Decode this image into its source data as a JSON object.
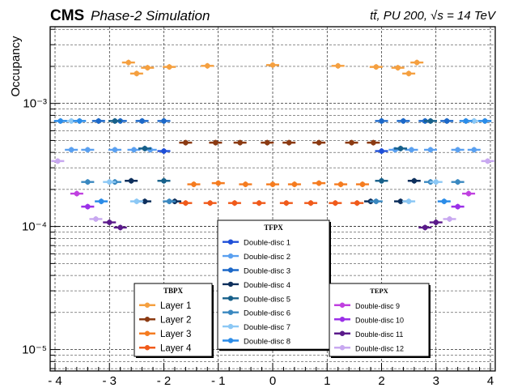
{
  "chart_data": {
    "type": "scatter",
    "title_left_bold": "CMS",
    "title_left_italic": "Phase-2 Simulation",
    "title_right": "tt̄, PU 200, √s = 14 TeV",
    "ylabel": "Occupancy",
    "xlabel": "",
    "ylim": [
      6.7e-06,
      0.0042
    ],
    "xlim": [
      -4.0,
      4.0
    ],
    "log_y": true,
    "grid": true,
    "x_ticks": [
      -4,
      -3,
      -2,
      -1,
      0,
      1,
      2,
      3,
      4
    ],
    "x_tick_labels": [
      "- 4",
      "- 3",
      "- 2",
      "- 1",
      "0",
      "1",
      "2",
      "3",
      "4"
    ],
    "y_ticks": [
      1e-05,
      0.0001,
      0.001
    ],
    "y_tick_labels": [
      "10⁻⁵",
      "10⁻⁴",
      "10⁻³"
    ],
    "legends": [
      {
        "title": "TBPX",
        "position": "bottom-left",
        "entries": [
          {
            "label": "Layer 1",
            "color": "#f5a040"
          },
          {
            "label": "Layer 2",
            "color": "#8b3a12"
          },
          {
            "label": "Layer 3",
            "color": "#f57c20"
          },
          {
            "label": "Layer 4",
            "color": "#f05a1a"
          }
        ]
      },
      {
        "title": "TFPX",
        "position": "bottom-center",
        "entries": [
          {
            "label": "Double-disc 1",
            "color": "#1f4fd8"
          },
          {
            "label": "Double-disc 2",
            "color": "#5aa0f0"
          },
          {
            "label": "Double-disc 3",
            "color": "#1c68c8"
          },
          {
            "label": "Double-disc 4",
            "color": "#0d2f5c"
          },
          {
            "label": "Double-disc 5",
            "color": "#17608a"
          },
          {
            "label": "Double-disc 6",
            "color": "#3a88c0"
          },
          {
            "label": "Double-disc 7",
            "color": "#8cc8f5"
          },
          {
            "label": "Double-disc 8",
            "color": "#2b8ce8"
          }
        ]
      },
      {
        "title": "TEPX",
        "position": "bottom-right",
        "entries": [
          {
            "label": "Double-disc 9",
            "color": "#c040e0"
          },
          {
            "label": "Double-disc 10",
            "color": "#9b30e8"
          },
          {
            "label": "Double-disc 11",
            "color": "#5a1a8a"
          },
          {
            "label": "Double-disc 12",
            "color": "#c8a8f0"
          }
        ]
      }
    ],
    "series": [
      {
        "name": "Layer 1",
        "color": "#f5a040",
        "x": [
          -2.65,
          -2.5,
          -2.3,
          -1.9,
          -1.2,
          0.0,
          1.2,
          1.9,
          2.3,
          2.5,
          2.65
        ],
        "y": [
          0.00215,
          0.00175,
          0.00195,
          0.00198,
          0.00202,
          0.00205,
          0.00202,
          0.00198,
          0.00195,
          0.00175,
          0.00215
        ]
      },
      {
        "name": "Layer 2",
        "color": "#8b3a12",
        "x": [
          -1.6,
          -1.05,
          -0.6,
          -0.1,
          0.3,
          0.85,
          1.45,
          1.85
        ],
        "y": [
          0.00048,
          0.00048,
          0.00048,
          0.00048,
          0.00048,
          0.00048,
          0.00048,
          0.00048
        ]
      },
      {
        "name": "Layer 3",
        "color": "#f57c20",
        "x": [
          -1.45,
          -1.0,
          -0.5,
          0.0,
          0.4,
          0.85,
          1.25,
          1.65
        ],
        "y": [
          0.00022,
          0.000225,
          0.00022,
          0.00022,
          0.00022,
          0.000225,
          0.00022,
          0.00022
        ]
      },
      {
        "name": "Layer 4",
        "color": "#f05a1a",
        "x": [
          -1.6,
          -1.15,
          -0.7,
          -0.25,
          0.25,
          0.7,
          1.15,
          1.55
        ],
        "y": [
          0.000155,
          0.000155,
          0.000155,
          0.000155,
          0.000155,
          0.000155,
          0.000155,
          0.000155
        ]
      },
      {
        "name": "Double-disc 1",
        "color": "#1f4fd8",
        "x": [
          -2.0,
          2.0
        ],
        "y": [
          0.00041,
          0.00041
        ]
      },
      {
        "name": "Double-disc 2",
        "color": "#5aa0f0",
        "x": [
          -3.7,
          -3.4,
          -2.9,
          -2.55,
          -2.25,
          2.25,
          2.55,
          2.9,
          3.4,
          3.7
        ],
        "y": [
          0.00042,
          0.00042,
          0.00042,
          0.00042,
          0.00042,
          0.00042,
          0.00042,
          0.00042,
          0.00042,
          0.00042
        ]
      },
      {
        "name": "Double-disc 3",
        "color": "#1c68c8",
        "x": [
          -3.2,
          -2.8,
          -2.4,
          -2.0,
          2.0,
          2.4,
          2.8,
          3.2
        ],
        "y": [
          0.00072,
          0.00072,
          0.00072,
          0.00072,
          0.00072,
          0.00072,
          0.00072,
          0.00072
        ]
      },
      {
        "name": "Double-disc 4",
        "color": "#0d2f5c",
        "x": [
          -2.6,
          -2.35,
          -1.8,
          1.8,
          2.35,
          2.6
        ],
        "y": [
          0.000235,
          0.00016,
          0.00016,
          0.00016,
          0.00016,
          0.000235
        ]
      },
      {
        "name": "Double-disc 5",
        "color": "#17608a",
        "x": [
          -2.9,
          -2.35,
          -2.0,
          2.0,
          2.35,
          2.9
        ],
        "y": [
          0.00072,
          0.00043,
          0.000235,
          0.000235,
          0.00043,
          0.00072
        ]
      },
      {
        "name": "Double-disc 6",
        "color": "#3a88c0",
        "x": [
          -3.4,
          -2.9,
          -1.9,
          1.9,
          2.9,
          3.4
        ],
        "y": [
          0.00023,
          0.00023,
          0.00016,
          0.00016,
          0.00023,
          0.00023
        ]
      },
      {
        "name": "Double-disc 7",
        "color": "#8cc8f5",
        "x": [
          -3.7,
          -3.0,
          -2.5,
          2.5,
          3.0,
          3.7
        ],
        "y": [
          0.00072,
          0.00023,
          0.00016,
          0.00016,
          0.00023,
          0.00072
        ]
      },
      {
        "name": "Double-disc 8",
        "color": "#2b8ce8",
        "x": [
          -3.9,
          -3.55,
          -3.15,
          3.15,
          3.55,
          3.9
        ],
        "y": [
          0.00072,
          0.00072,
          0.00016,
          0.00016,
          0.00072,
          0.00072
        ]
      },
      {
        "name": "Double-disc 9",
        "color": "#c040e0",
        "x": [
          -3.6,
          3.6
        ],
        "y": [
          0.000185,
          0.000185
        ]
      },
      {
        "name": "Double-disc 10",
        "color": "#9b30e8",
        "x": [
          -3.4,
          3.4
        ],
        "y": [
          0.000145,
          0.000145
        ]
      },
      {
        "name": "Double-disc 11",
        "color": "#5a1a8a",
        "x": [
          -3.0,
          -2.8,
          2.8,
          3.0
        ],
        "y": [
          0.000108,
          9.8e-05,
          9.8e-05,
          0.000108
        ]
      },
      {
        "name": "Double-disc 12",
        "color": "#c8a8f0",
        "x": [
          -3.95,
          -3.25,
          3.25,
          3.95
        ],
        "y": [
          0.00034,
          0.000115,
          0.000115,
          0.00034
        ]
      }
    ]
  }
}
